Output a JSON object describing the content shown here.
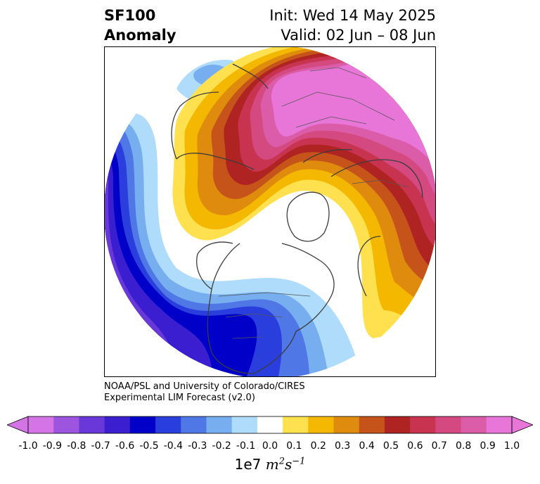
{
  "title": {
    "left_line1": "SF100",
    "left_line2": "Anomaly",
    "right_line1": "Init: Wed 14 May 2025",
    "right_line2": "Valid: 02 Jun – 08 Jun"
  },
  "credit": {
    "line1": "NOAA/PSL and University of Colorado/CIRES",
    "line2": "Experimental LIM Forecast (v2.0)"
  },
  "colorbar": {
    "ticks": [
      "-1.0",
      "-0.9",
      "-0.8",
      "-0.7",
      "-0.6",
      "-0.5",
      "-0.4",
      "-0.3",
      "-0.2",
      "-0.1",
      "0.0",
      "0.1",
      "0.2",
      "0.3",
      "0.4",
      "0.5",
      "0.6",
      "0.7",
      "0.8",
      "0.9",
      "1.0"
    ],
    "colors": [
      "#d474e6",
      "#9d55e0",
      "#6a38d8",
      "#3a1ed0",
      "#0000c8",
      "#2a3edd",
      "#4f77e6",
      "#76aef0",
      "#aedcfa",
      "#ffffff",
      "#ffe14f",
      "#f5b800",
      "#df8b0e",
      "#c6531a",
      "#b02323",
      "#c83450",
      "#d44a80",
      "#db5ca8",
      "#e876d8"
    ],
    "under_color": "#d474e6",
    "over_color": "#e876d8",
    "units_prefix": "1e7",
    "units_m": "m",
    "units_m_exp": "2",
    "units_s": "s",
    "units_s_exp": "−1"
  },
  "map": {
    "projection": "north-polar-stereographic",
    "field": "streamfunction anomaly"
  }
}
